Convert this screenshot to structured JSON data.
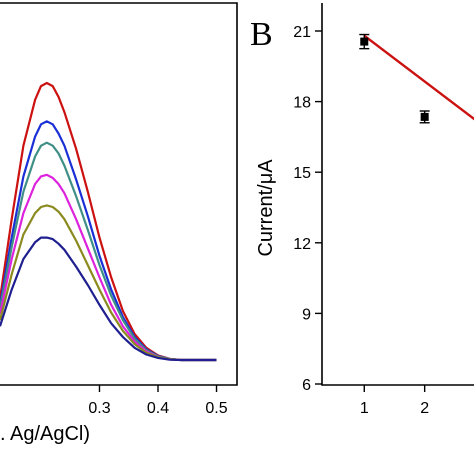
{
  "chart_data": [
    {
      "type": "line",
      "panel": "",
      "title": "",
      "xlabel": "s. Ag/AgCl)",
      "ylabel": "",
      "x_ticks": [
        0.3,
        0.4,
        0.5
      ],
      "xlim": [
        0.13,
        0.535
      ],
      "ylim": [
        0,
        1
      ],
      "y_units": "normalized (no y-axis labels visible)",
      "x": [
        0.13,
        0.15,
        0.17,
        0.19,
        0.2,
        0.21,
        0.22,
        0.23,
        0.24,
        0.26,
        0.28,
        0.3,
        0.32,
        0.34,
        0.36,
        0.38,
        0.4,
        0.42,
        0.44,
        0.5
      ],
      "series": [
        {
          "color": "#cc1111",
          "values": [
            0.2,
            0.46,
            0.7,
            0.85,
            0.895,
            0.905,
            0.895,
            0.86,
            0.81,
            0.69,
            0.55,
            0.4,
            0.27,
            0.16,
            0.085,
            0.04,
            0.015,
            0.004,
            0.0,
            0.0
          ]
        },
        {
          "color": "#1a2fd6",
          "values": [
            0.18,
            0.4,
            0.6,
            0.73,
            0.77,
            0.78,
            0.77,
            0.74,
            0.7,
            0.59,
            0.47,
            0.34,
            0.23,
            0.14,
            0.075,
            0.035,
            0.013,
            0.003,
            0.0,
            0.0
          ]
        },
        {
          "color": "#3f8f86",
          "values": [
            0.17,
            0.37,
            0.55,
            0.665,
            0.7,
            0.71,
            0.7,
            0.675,
            0.635,
            0.535,
            0.425,
            0.31,
            0.21,
            0.13,
            0.07,
            0.032,
            0.012,
            0.003,
            0.0,
            0.0
          ]
        },
        {
          "color": "#dd22dd",
          "values": [
            0.15,
            0.33,
            0.48,
            0.575,
            0.6,
            0.605,
            0.595,
            0.575,
            0.545,
            0.46,
            0.365,
            0.27,
            0.18,
            0.11,
            0.06,
            0.028,
            0.01,
            0.002,
            0.0,
            0.0
          ]
        },
        {
          "color": "#8a8a1f",
          "values": [
            0.13,
            0.28,
            0.41,
            0.48,
            0.5,
            0.505,
            0.5,
            0.485,
            0.46,
            0.39,
            0.31,
            0.23,
            0.155,
            0.095,
            0.052,
            0.024,
            0.009,
            0.002,
            0.0,
            0.0
          ]
        },
        {
          "color": "#1f1f8f",
          "values": [
            0.11,
            0.23,
            0.33,
            0.385,
            0.4,
            0.4,
            0.395,
            0.38,
            0.36,
            0.305,
            0.245,
            0.18,
            0.12,
            0.075,
            0.04,
            0.018,
            0.007,
            0.001,
            0.0,
            0.0
          ]
        }
      ]
    },
    {
      "type": "scatter",
      "panel": "B",
      "title": "",
      "xlabel": "",
      "ylabel": "Current/μA",
      "x_ticks": [
        1,
        2
      ],
      "y_ticks": [
        6,
        9,
        12,
        15,
        18,
        21
      ],
      "xlim": [
        0.3,
        2.85
      ],
      "ylim": [
        6,
        22
      ],
      "points": [
        {
          "x": 1,
          "y": 20.55,
          "err": 0.3
        },
        {
          "x": 2,
          "y": 17.35,
          "err": 0.25
        }
      ],
      "fit_line": {
        "color": "#cc1111",
        "x": [
          1,
          2.85
        ],
        "y": [
          20.8,
          17.2
        ]
      }
    }
  ]
}
